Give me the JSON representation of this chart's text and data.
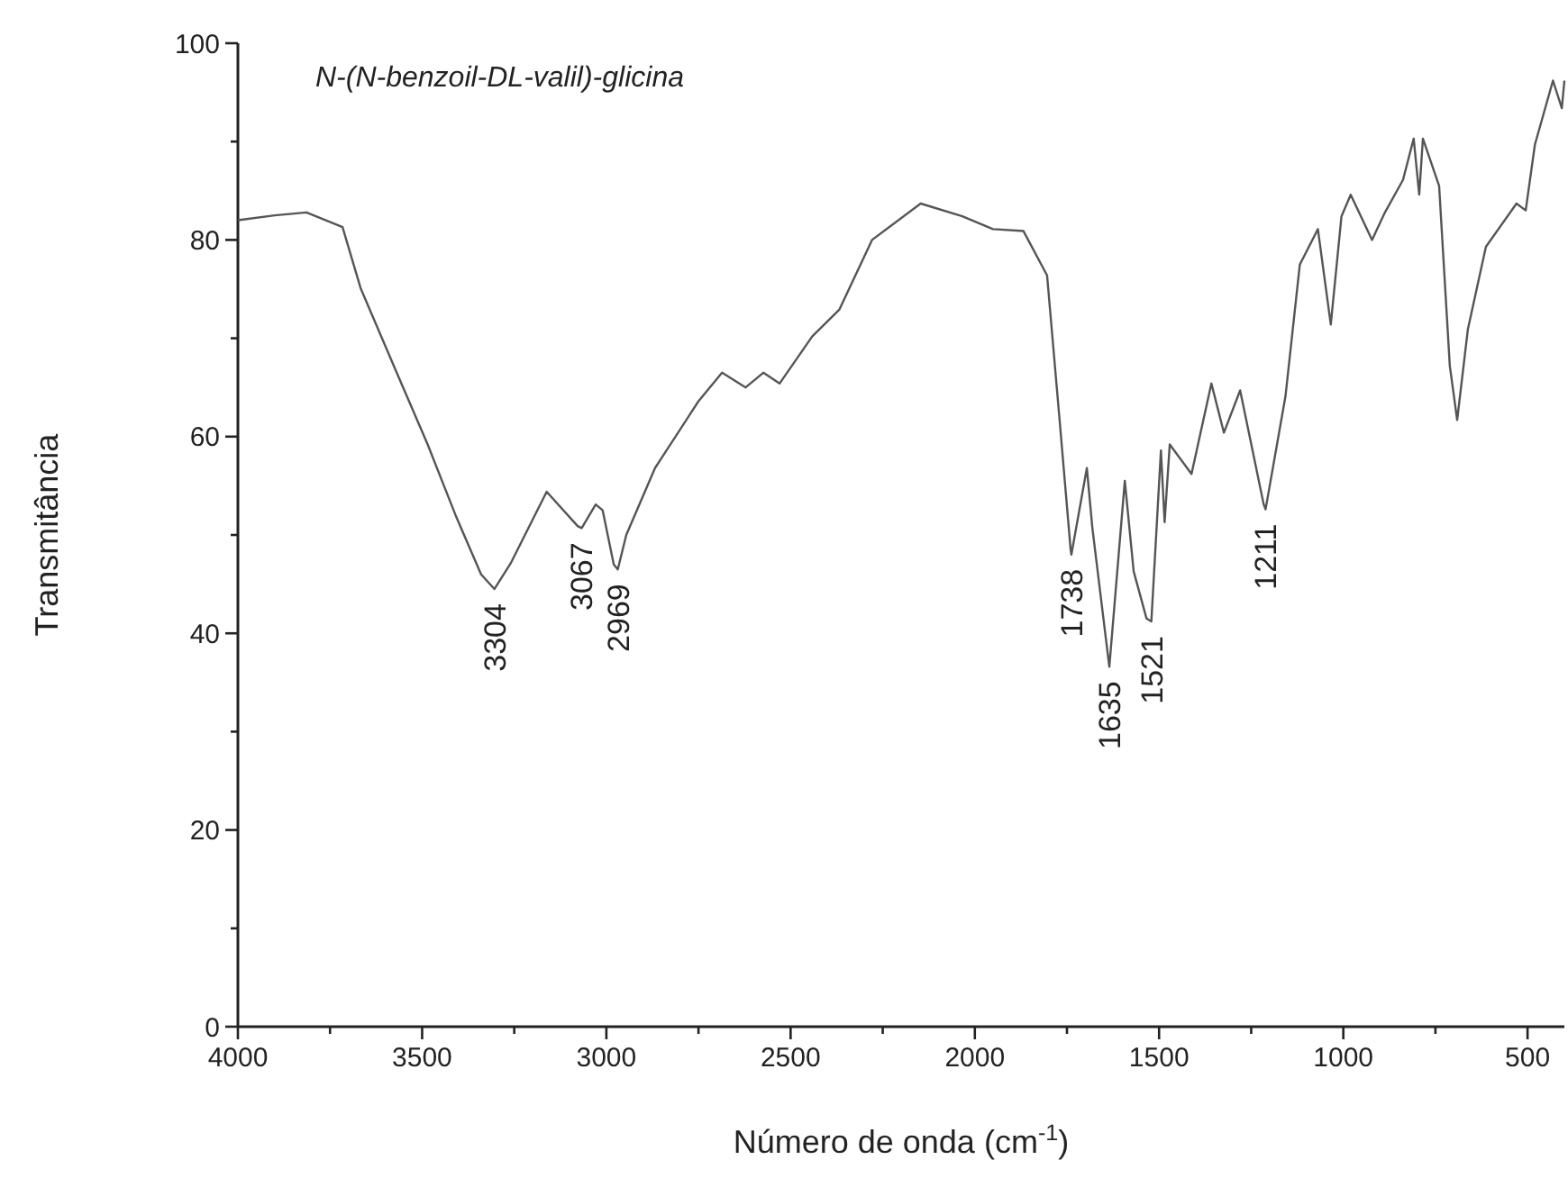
{
  "chart_data": {
    "type": "line",
    "title": "N-(N-benzoil-DL-valil)-glicina",
    "xlabel": "Número de onda (cm$^{-1}$)",
    "ylabel": "Transmitância",
    "xlim": [
      4000,
      400
    ],
    "ylim": [
      0,
      100
    ],
    "xticks": [
      4000,
      {
        "value": 3750,
        "label": null
      },
      3500,
      {
        "value": 3250,
        "label": null
      },
      3000,
      {
        "value": 2750,
        "label": null
      },
      2500,
      {
        "value": 2250,
        "label": null
      },
      2000,
      {
        "value": 1750,
        "label": null
      },
      1500,
      {
        "value": 1250,
        "label": null
      },
      1000,
      {
        "value": 750,
        "label": null
      },
      500
    ],
    "yticks": [
      0,
      {
        "value": 10,
        "label": null
      },
      20,
      {
        "value": 30,
        "label": null
      },
      40,
      {
        "value": 50,
        "label": null
      },
      60,
      {
        "value": 70,
        "label": null
      },
      80,
      {
        "value": 90,
        "label": null
      },
      100
    ],
    "marker": "none",
    "line_style": "solid",
    "series": [
      {
        "color": "#555555",
        "x": [
          4000,
          3900,
          3814,
          3716,
          3667,
          3569,
          3485,
          3407,
          3340,
          3304,
          3260,
          3162,
          3078,
          3067,
          3029,
          3010,
          2980,
          2969,
          2946,
          2868,
          2750,
          2686,
          2622,
          2574,
          2530,
          2441,
          2368,
          2279,
          2147,
          2034,
          1951,
          1868,
          1804,
          1770,
          1740,
          1738,
          1696,
          1681,
          1635,
          1593,
          1569,
          1534,
          1521,
          1495,
          1485,
          1471,
          1412,
          1358,
          1324,
          1280,
          1216,
          1211,
          1157,
          1118,
          1069,
          1034,
          1005,
          980,
          922,
          887,
          838,
          809,
          794,
          784,
          740,
          711,
          691,
          662,
          613,
          530,
          505,
          480,
          431,
          407,
          400
        ],
        "values": [
          82,
          82.5,
          82.8,
          81.3,
          75.1,
          66.5,
          59.2,
          51.8,
          46,
          44.5,
          47.1,
          54.4,
          50.9,
          50.7,
          53.1,
          52.5,
          47,
          46.5,
          50,
          56.8,
          63.6,
          66.5,
          65,
          66.5,
          65.4,
          70.2,
          72.9,
          80,
          83.7,
          82.4,
          81.1,
          80.9,
          76.4,
          61.7,
          48.5,
          48,
          56.8,
          50.7,
          36.6,
          55.5,
          46.3,
          41.5,
          41.2,
          58.6,
          51.3,
          59.2,
          56.2,
          65.4,
          60.4,
          64.7,
          53.1,
          52.6,
          64.1,
          77.5,
          81.1,
          71.4,
          82.4,
          84.6,
          80,
          82.8,
          86.1,
          90.3,
          84.6,
          90.3,
          85.5,
          67.2,
          61.7,
          70.9,
          79.3,
          83.7,
          83,
          89.7,
          96.2,
          93.4,
          96.2
        ]
      }
    ],
    "annotations": [
      {
        "text": "3304",
        "x": 3304,
        "y": 44.5
      },
      {
        "text": "3067",
        "x": 3067,
        "y": 50.7
      },
      {
        "text": "2969",
        "x": 2969,
        "y": 46.5
      },
      {
        "text": "1738",
        "x": 1738,
        "y": 48
      },
      {
        "text": "1635",
        "x": 1635,
        "y": 36.6
      },
      {
        "text": "1521",
        "x": 1521,
        "y": 41.2
      },
      {
        "text": "1211",
        "x": 1211,
        "y": 52.6
      }
    ]
  }
}
